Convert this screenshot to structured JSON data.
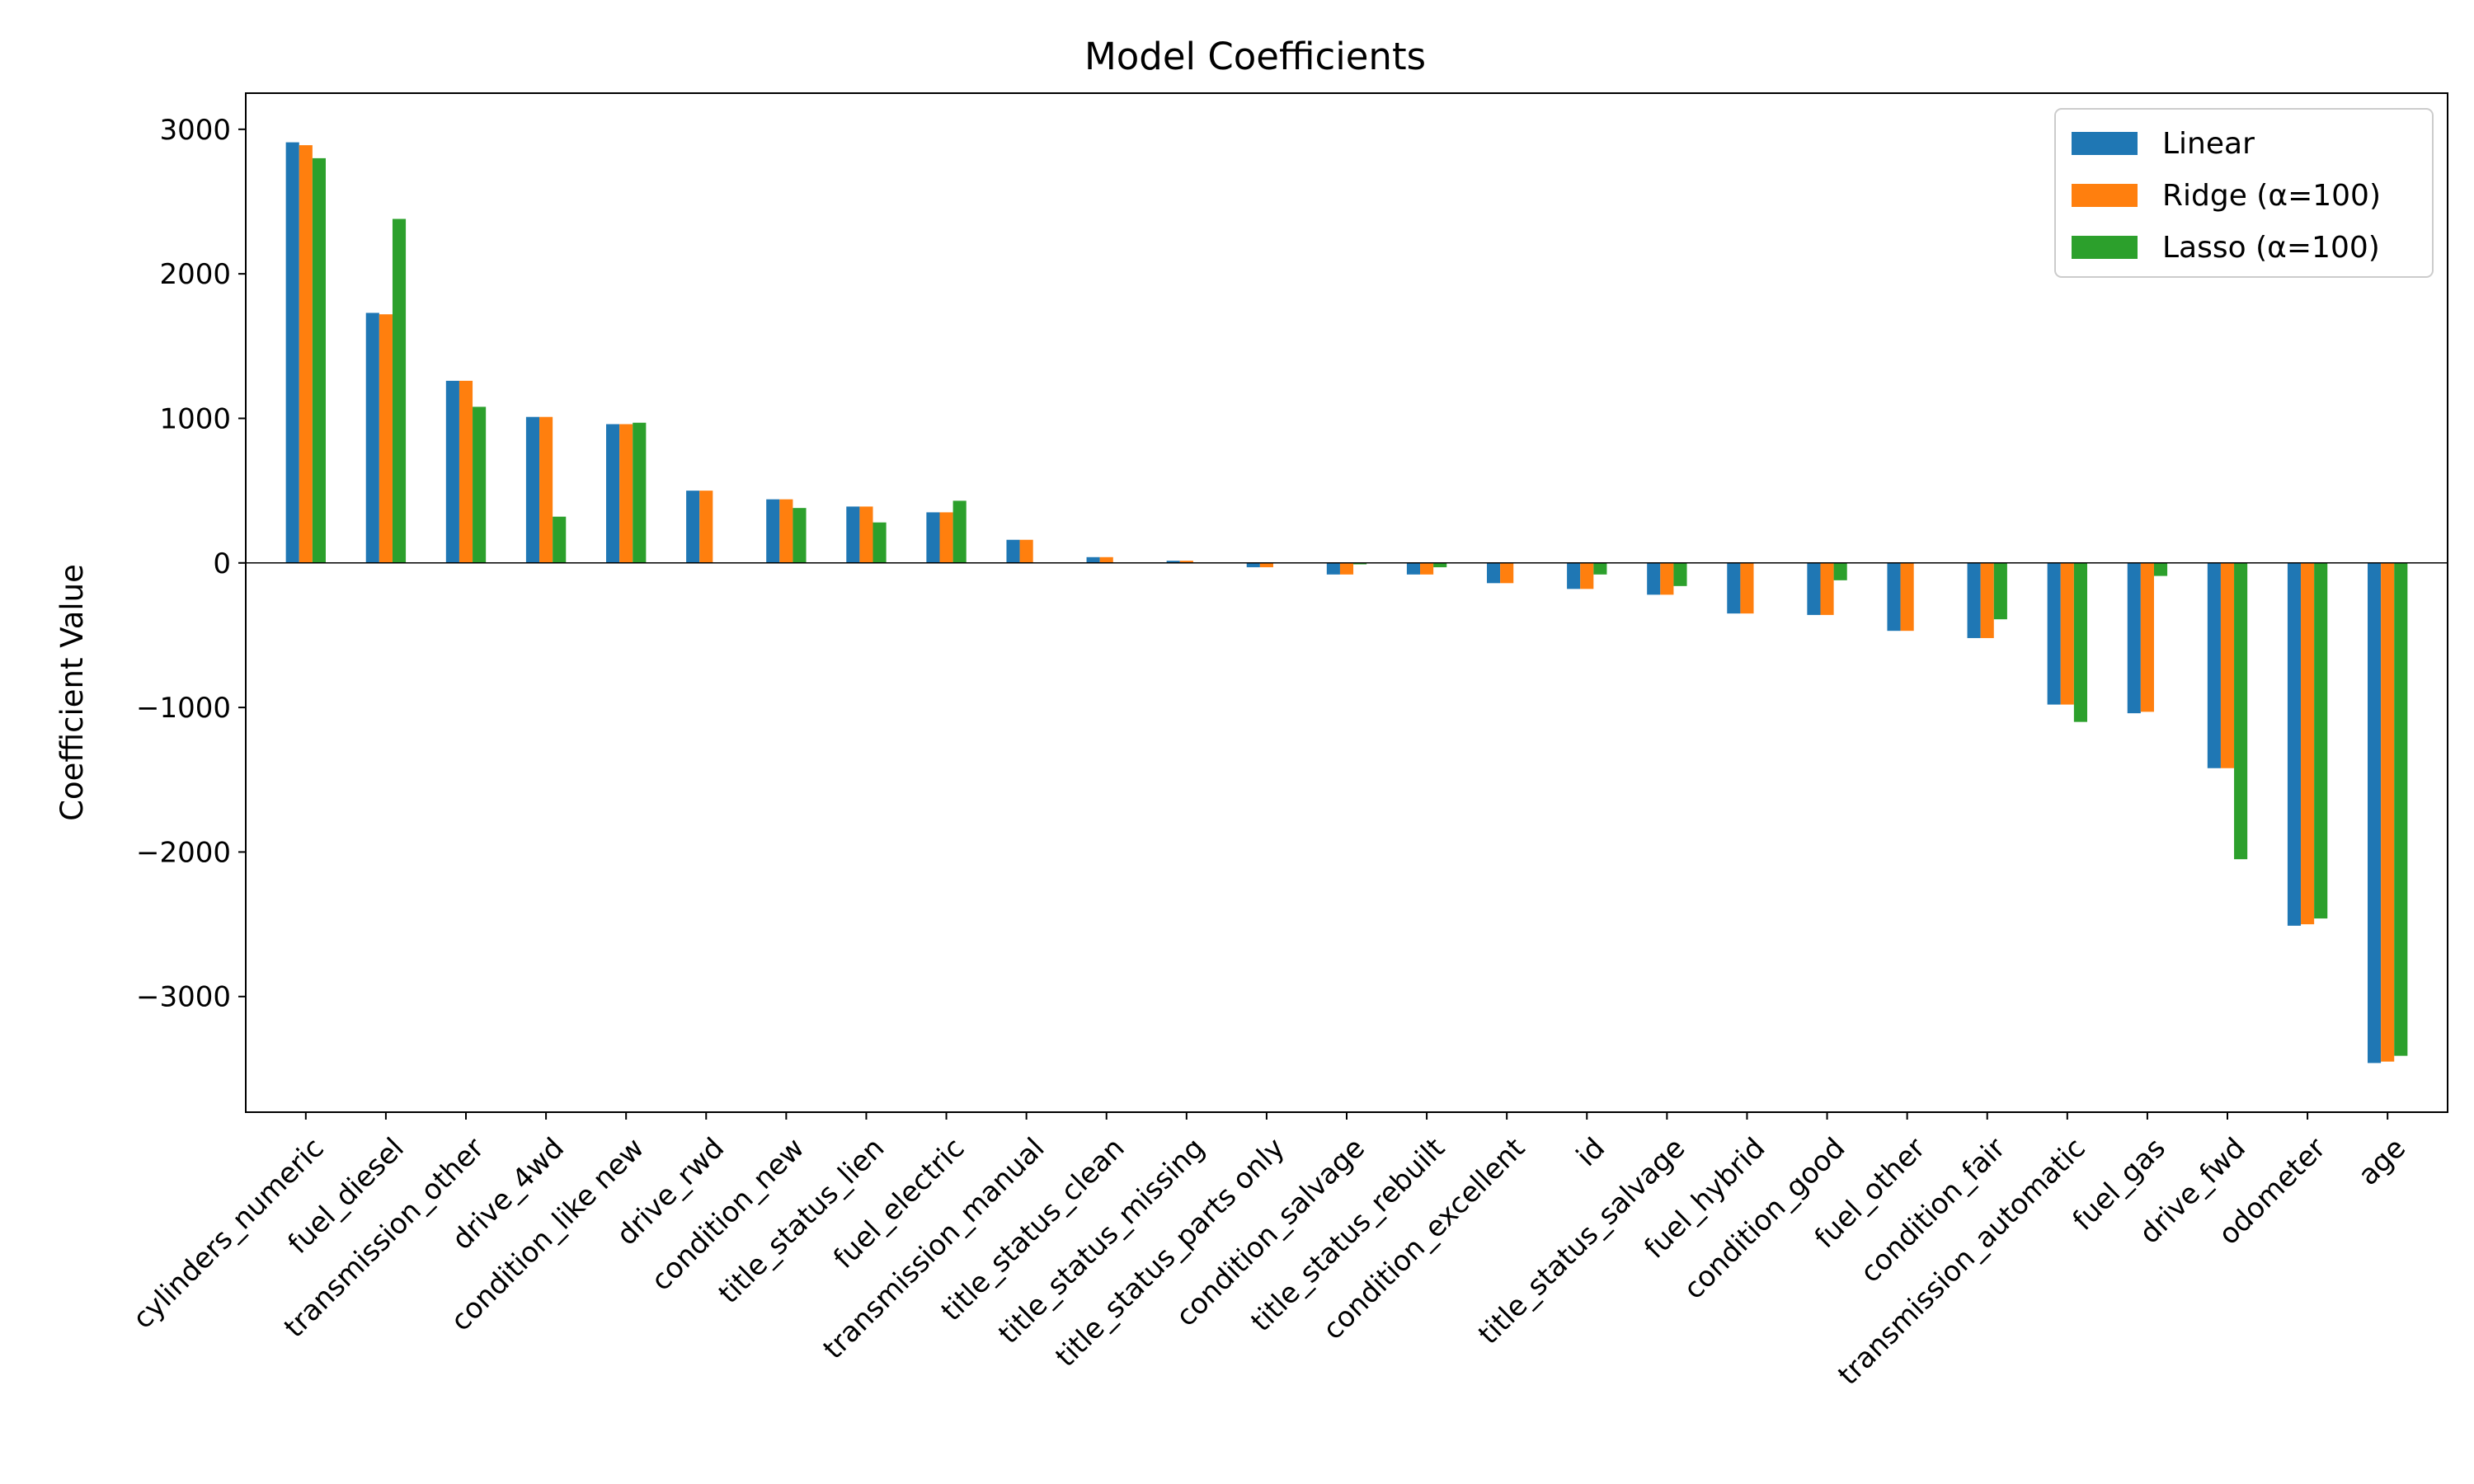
{
  "chart_data": {
    "type": "bar",
    "title": "Model Coefficients",
    "xlabel": "",
    "ylabel": "Coefficient Value",
    "ylim": [
      -3800,
      3250
    ],
    "yticks": [
      -3000,
      -2000,
      -1000,
      0,
      1000,
      2000,
      3000
    ],
    "ytick_labels": [
      "−3000",
      "−2000",
      "−1000",
      "0",
      "1000",
      "2000",
      "3000"
    ],
    "grid": false,
    "legend_position": "top-right",
    "categories": [
      "cylinders_numeric",
      "fuel_diesel",
      "transmission_other",
      "drive_4wd",
      "condition_like new",
      "drive_rwd",
      "condition_new",
      "title_status_lien",
      "fuel_electric",
      "transmission_manual",
      "title_status_clean",
      "title_status_missing",
      "title_status_parts only",
      "condition_salvage",
      "title_status_rebuilt",
      "condition_excellent",
      "id",
      "title_status_salvage",
      "fuel_hybrid",
      "condition_good",
      "fuel_other",
      "condition_fair",
      "transmission_automatic",
      "fuel_gas",
      "drive_fwd",
      "odometer",
      "age"
    ],
    "series": [
      {
        "name": "Linear",
        "color": "#1f77b4",
        "values": [
          2910,
          1730,
          1260,
          1010,
          960,
          500,
          440,
          390,
          350,
          160,
          40,
          15,
          -30,
          -80,
          -80,
          -140,
          -180,
          -220,
          -350,
          -360,
          -470,
          -520,
          -980,
          -1040,
          -1420,
          -2510,
          -3460
        ]
      },
      {
        "name": "Ridge (α=100)",
        "color": "#ff7f0e",
        "values": [
          2890,
          1720,
          1260,
          1010,
          960,
          500,
          440,
          390,
          350,
          160,
          40,
          15,
          -30,
          -80,
          -80,
          -140,
          -180,
          -220,
          -350,
          -360,
          -470,
          -520,
          -980,
          -1030,
          -1420,
          -2500,
          -3450
        ]
      },
      {
        "name": "Lasso (α=100)",
        "color": "#2ca02c",
        "values": [
          2800,
          2380,
          1080,
          320,
          970,
          0,
          380,
          280,
          430,
          0,
          0,
          0,
          0,
          -10,
          -30,
          0,
          -80,
          -160,
          0,
          -120,
          0,
          -390,
          -1100,
          -90,
          -2050,
          -2460,
          -3410
        ]
      }
    ]
  }
}
